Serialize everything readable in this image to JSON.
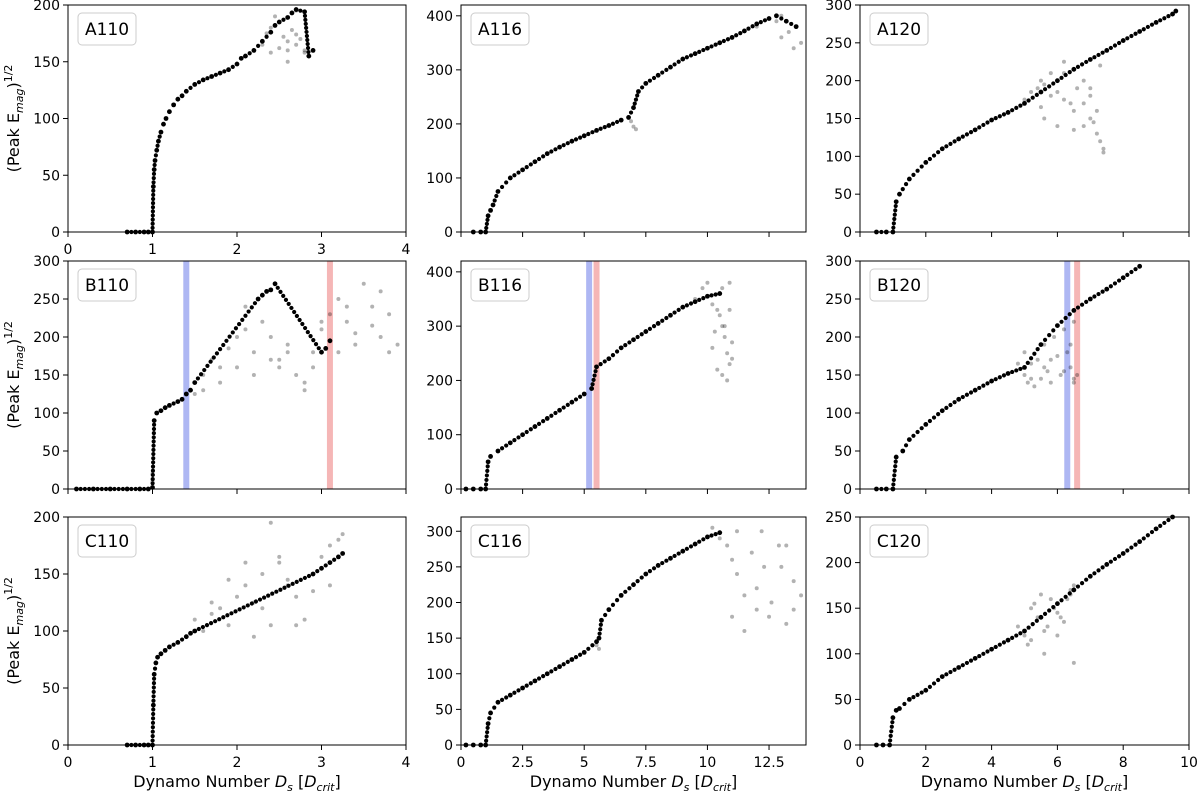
{
  "figure": {
    "xlabel_left": "Dynamo Number ",
    "xlabel_var": "D",
    "xlabel_var_sub": "s",
    "xlabel_bracket_open": " [",
    "xlabel_unit": "D",
    "xlabel_unit_sub": "crit",
    "xlabel_bracket_close": "]",
    "ylabel_prefix": "(Peak E",
    "ylabel_sub": "mag",
    "ylabel_suffix": ")",
    "ylabel_sup": "1/2",
    "point_color": "#000000",
    "blue_line_color": "#9aa5f0",
    "red_line_color": "#f2a4a4"
  },
  "chart_data": [
    {
      "id": "A110",
      "type": "scatter",
      "label": "A110",
      "xlim": [
        0,
        4
      ],
      "ylim": [
        0,
        200
      ],
      "xticks": [
        0,
        1,
        2,
        3,
        4
      ],
      "yticks": [
        0,
        50,
        100,
        150,
        200
      ],
      "markers": [],
      "x": [
        0.7,
        0.8,
        0.9,
        0.95,
        1.0,
        1.01,
        1.02,
        1.03,
        1.05,
        1.07,
        1.1,
        1.13,
        1.16,
        1.2,
        1.25,
        1.3,
        1.35,
        1.4,
        1.5,
        1.6,
        1.7,
        1.8,
        1.9,
        2.0,
        2.05,
        2.1,
        2.2,
        2.3,
        2.4,
        2.45,
        2.5,
        2.6,
        2.65,
        2.7,
        2.8,
        2.85,
        2.9
      ],
      "y": [
        0,
        0,
        0,
        0,
        0,
        40,
        55,
        63,
        72,
        80,
        88,
        95,
        100,
        106,
        112,
        117,
        120,
        124,
        130,
        134,
        137,
        140,
        143,
        148,
        153,
        155,
        160,
        168,
        176,
        182,
        185,
        189,
        193,
        196,
        194,
        155,
        160
      ],
      "scatter": {
        "x": [
          2.3,
          2.35,
          2.4,
          2.45,
          2.5,
          2.55,
          2.6,
          2.65,
          2.7,
          2.75,
          2.8,
          2.4,
          2.5,
          2.6,
          2.7,
          2.8,
          2.6,
          2.7
        ],
        "y": [
          165,
          175,
          180,
          190,
          185,
          172,
          168,
          178,
          195,
          170,
          160,
          158,
          162,
          160,
          174,
          158,
          150,
          165
        ]
      }
    },
    {
      "id": "A116",
      "type": "scatter",
      "label": "A116",
      "xlim": [
        0,
        14
      ],
      "ylim": [
        0,
        420
      ],
      "xticks": [],
      "yticks": [
        0,
        100,
        200,
        300,
        400
      ],
      "markers": [],
      "x": [
        0.5,
        0.8,
        1.0,
        1.1,
        1.2,
        1.3,
        1.5,
        2.0,
        2.5,
        3.0,
        3.5,
        4.0,
        4.5,
        5.0,
        5.5,
        6.0,
        6.5,
        6.8,
        7.0,
        7.2,
        7.5,
        8.0,
        8.5,
        9.0,
        9.5,
        10.0,
        10.5,
        11.0,
        11.5,
        12.0,
        12.5,
        12.8,
        13.2,
        13.6
      ],
      "y": [
        0,
        0,
        0,
        30,
        40,
        50,
        75,
        100,
        115,
        130,
        145,
        157,
        168,
        178,
        188,
        197,
        207,
        212,
        230,
        260,
        275,
        290,
        305,
        320,
        330,
        340,
        350,
        360,
        372,
        385,
        395,
        400,
        390,
        380
      ],
      "scatter": {
        "x": [
          6.9,
          7.0,
          7.1,
          12.0,
          12.5,
          12.8,
          13.0,
          13.3,
          13.6,
          13.8,
          13.0,
          13.5
        ],
        "y": [
          205,
          195,
          190,
          380,
          395,
          390,
          360,
          370,
          380,
          350,
          400,
          340
        ]
      }
    },
    {
      "id": "A120",
      "type": "scatter",
      "label": "A120",
      "xlim": [
        0,
        10
      ],
      "ylim": [
        0,
        300
      ],
      "xticks": [],
      "yticks": [
        0,
        50,
        100,
        150,
        200,
        250,
        300
      ],
      "markers": [],
      "x": [
        0.5,
        0.8,
        1.0,
        1.1,
        1.2,
        1.5,
        2.0,
        2.5,
        3.0,
        3.5,
        4.0,
        4.5,
        5.0,
        5.5,
        6.0,
        6.5,
        7.0,
        7.5,
        8.0,
        8.5,
        9.0,
        9.5,
        9.6
      ],
      "y": [
        0,
        0,
        0,
        40,
        50,
        70,
        92,
        110,
        123,
        135,
        148,
        158,
        170,
        185,
        200,
        215,
        228,
        240,
        253,
        265,
        277,
        288,
        292
      ],
      "scatter": {
        "x": [
          5.0,
          5.2,
          5.4,
          5.5,
          5.6,
          5.8,
          6.0,
          6.2,
          6.4,
          6.5,
          6.6,
          6.8,
          7.0,
          7.2,
          7.3,
          7.4,
          5.5,
          5.8,
          6.0,
          6.2,
          6.5,
          6.8,
          7.0,
          7.2,
          7.4,
          6.0,
          6.5,
          7.0,
          7.3,
          5.6,
          6.2,
          6.8,
          7.1
        ],
        "y": [
          175,
          185,
          190,
          165,
          150,
          180,
          200,
          210,
          170,
          160,
          190,
          140,
          150,
          130,
          120,
          110,
          200,
          210,
          185,
          175,
          215,
          200,
          180,
          160,
          105,
          140,
          135,
          190,
          220,
          195,
          225,
          170,
          145
        ]
      }
    },
    {
      "id": "B110",
      "type": "scatter",
      "label": "B110",
      "xlim": [
        0,
        4
      ],
      "ylim": [
        0,
        300
      ],
      "xticks": [],
      "yticks": [
        0,
        50,
        100,
        150,
        200,
        250,
        300
      ],
      "markers": [
        {
          "x": 1.4,
          "color": "blue"
        },
        {
          "x": 3.1,
          "color": "red"
        }
      ],
      "x": [
        0.1,
        0.3,
        0.5,
        0.7,
        0.85,
        0.95,
        1.0,
        1.02,
        1.05,
        1.1,
        1.15,
        1.2,
        1.3,
        1.35,
        1.4,
        1.45,
        1.5,
        2.25,
        2.3,
        2.35,
        2.4,
        2.45,
        3.0,
        3.05,
        3.1
      ],
      "y": [
        0,
        0,
        0,
        0,
        0,
        0,
        2,
        90,
        100,
        103,
        107,
        110,
        115,
        118,
        125,
        130,
        140,
        250,
        255,
        260,
        262,
        270,
        180,
        185,
        195
      ],
      "scatter": {
        "x": [
          1.5,
          1.6,
          1.7,
          1.8,
          1.9,
          2.0,
          2.1,
          2.2,
          2.3,
          2.4,
          2.5,
          2.6,
          2.7,
          2.8,
          2.9,
          3.0,
          3.1,
          3.2,
          3.3,
          3.4,
          3.5,
          3.6,
          3.7,
          3.8,
          3.9,
          1.6,
          1.8,
          2.0,
          2.2,
          2.4,
          2.6,
          2.8,
          3.0,
          3.2,
          3.4,
          3.6,
          3.8,
          2.1,
          2.5,
          2.9,
          3.3,
          3.7,
          1.0,
          1.0
        ],
        "y": [
          125,
          150,
          170,
          160,
          185,
          200,
          210,
          180,
          220,
          200,
          170,
          190,
          150,
          140,
          180,
          210,
          230,
          250,
          220,
          190,
          270,
          240,
          200,
          230,
          190,
          130,
          140,
          160,
          150,
          170,
          180,
          130,
          220,
          180,
          205,
          215,
          180,
          240,
          160,
          160,
          240,
          260,
          20,
          10
        ]
      }
    },
    {
      "id": "B116",
      "type": "scatter",
      "label": "B116",
      "xlim": [
        0,
        14
      ],
      "ylim": [
        0,
        420
      ],
      "xticks": [],
      "yticks": [
        0,
        100,
        200,
        300,
        400
      ],
      "markers": [
        {
          "x": 5.2,
          "color": "blue"
        },
        {
          "x": 5.5,
          "color": "red"
        }
      ],
      "x": [
        0.2,
        0.5,
        0.8,
        1.0,
        1.1,
        1.2,
        1.5,
        2.0,
        2.5,
        3.0,
        3.5,
        4.0,
        4.5,
        5.0,
        5.3,
        5.5,
        6.0,
        6.5,
        7.0,
        7.5,
        8.0,
        8.5,
        9.0,
        9.5,
        10.0,
        10.5
      ],
      "y": [
        0,
        0,
        0,
        0,
        50,
        60,
        70,
        85,
        100,
        115,
        130,
        145,
        160,
        175,
        185,
        225,
        240,
        260,
        275,
        290,
        305,
        320,
        335,
        345,
        355,
        360
      ],
      "scatter": {
        "x": [
          9.5,
          9.8,
          10.0,
          10.2,
          10.4,
          10.5,
          10.6,
          10.7,
          10.8,
          10.9,
          11.0,
          10.2,
          10.4,
          10.6,
          10.8,
          11.0,
          10.5,
          10.7,
          10.9,
          10.3,
          10.6,
          10.9
        ],
        "y": [
          350,
          370,
          380,
          340,
          330,
          360,
          300,
          280,
          250,
          230,
          270,
          260,
          220,
          210,
          200,
          240,
          320,
          300,
          330,
          290,
          370,
          380
        ]
      }
    },
    {
      "id": "B120",
      "type": "scatter",
      "label": "B120",
      "xlim": [
        0,
        10
      ],
      "ylim": [
        0,
        300
      ],
      "xticks": [],
      "yticks": [
        0,
        50,
        100,
        150,
        200,
        250,
        300
      ],
      "markers": [
        {
          "x": 6.3,
          "color": "blue"
        },
        {
          "x": 6.6,
          "color": "red"
        }
      ],
      "x": [
        0.5,
        0.8,
        1.0,
        1.1,
        1.3,
        1.5,
        2.0,
        2.5,
        3.0,
        3.5,
        4.0,
        4.5,
        5.0,
        5.5,
        6.0,
        6.5,
        7.0,
        7.5,
        8.0,
        8.5
      ],
      "y": [
        0,
        0,
        0,
        42,
        50,
        65,
        85,
        103,
        118,
        130,
        142,
        152,
        160,
        190,
        215,
        235,
        250,
        263,
        278,
        293
      ],
      "scatter": {
        "x": [
          4.8,
          5.0,
          5.2,
          5.4,
          5.6,
          5.8,
          6.0,
          6.2,
          6.4,
          6.5,
          6.6,
          5.0,
          5.3,
          5.6,
          5.9,
          6.2,
          6.5,
          5.2,
          5.5,
          5.8,
          6.1,
          6.4,
          5.1,
          5.7,
          6.3,
          6.5
        ],
        "y": [
          165,
          150,
          145,
          170,
          160,
          140,
          175,
          155,
          190,
          145,
          150,
          180,
          135,
          190,
          200,
          210,
          220,
          165,
          145,
          170,
          150,
          160,
          140,
          155,
          180,
          140
        ]
      }
    },
    {
      "id": "C110",
      "type": "scatter",
      "label": "C110",
      "xlim": [
        0,
        4
      ],
      "ylim": [
        0,
        200
      ],
      "xticks": [
        0,
        1,
        2,
        3,
        4
      ],
      "yticks": [
        0,
        50,
        100,
        150,
        200
      ],
      "markers": [],
      "x": [
        0.7,
        0.8,
        0.9,
        0.95,
        1.0,
        1.01,
        1.02,
        1.04,
        1.06,
        1.1,
        1.15,
        1.2,
        1.3,
        1.4,
        1.45,
        1.5,
        2.9,
        3.0,
        3.1,
        3.2,
        3.25
      ],
      "y": [
        0,
        0,
        0,
        0,
        0,
        35,
        62,
        72,
        77,
        80,
        83,
        86,
        90,
        95,
        98,
        100,
        150,
        155,
        160,
        165,
        168
      ],
      "scatter": {
        "x": [
          1.5,
          1.6,
          1.7,
          1.8,
          1.9,
          2.0,
          2.1,
          2.2,
          2.3,
          2.4,
          2.5,
          2.6,
          2.7,
          2.8,
          2.9,
          3.0,
          3.1,
          3.2,
          3.25,
          1.7,
          1.9,
          2.1,
          2.3,
          2.5,
          2.7,
          2.9,
          3.1,
          2.4,
          2.6,
          2.2
        ],
        "y": [
          110,
          100,
          115,
          120,
          105,
          130,
          140,
          125,
          150,
          195,
          160,
          145,
          130,
          110,
          135,
          165,
          175,
          180,
          185,
          125,
          145,
          160,
          120,
          165,
          105,
          150,
          140,
          105,
          140,
          95
        ]
      }
    },
    {
      "id": "C116",
      "type": "scatter",
      "label": "C116",
      "xlim": [
        0,
        14
      ],
      "ylim": [
        0,
        320
      ],
      "xticks": [
        0.0,
        2.5,
        5.0,
        7.5,
        10.0,
        12.5
      ],
      "yticks": [
        0,
        50,
        100,
        150,
        200,
        250,
        300
      ],
      "markers": [],
      "x": [
        0.2,
        0.5,
        0.8,
        1.0,
        1.1,
        1.2,
        1.5,
        2.0,
        2.5,
        3.0,
        3.5,
        4.0,
        4.5,
        5.0,
        5.5,
        5.6,
        5.7,
        6.0,
        6.5,
        7.0,
        7.5,
        8.0,
        8.5,
        9.0,
        9.5,
        10.0,
        10.5
      ],
      "y": [
        0,
        0,
        0,
        0,
        30,
        45,
        60,
        70,
        80,
        90,
        100,
        110,
        120,
        130,
        145,
        150,
        175,
        190,
        210,
        225,
        240,
        252,
        262,
        272,
        282,
        292,
        298
      ],
      "scatter": {
        "x": [
          10.2,
          10.5,
          10.8,
          11.0,
          11.2,
          11.5,
          11.8,
          12.0,
          12.3,
          12.6,
          12.9,
          13.2,
          13.5,
          13.8,
          11.0,
          11.5,
          12.0,
          12.5,
          13.0,
          13.5,
          11.2,
          12.2,
          13.2,
          5.5,
          5.6
        ],
        "y": [
          305,
          290,
          280,
          260,
          240,
          210,
          270,
          190,
          250,
          200,
          280,
          170,
          230,
          210,
          180,
          160,
          220,
          180,
          250,
          190,
          300,
          300,
          280,
          140,
          135
        ]
      }
    },
    {
      "id": "C120",
      "type": "scatter",
      "label": "C120",
      "xlim": [
        0,
        10
      ],
      "ylim": [
        0,
        250
      ],
      "xticks": [
        0,
        2,
        4,
        6,
        8,
        10
      ],
      "yticks": [
        0,
        50,
        100,
        150,
        200,
        250
      ],
      "markers": [],
      "x": [
        0.5,
        0.7,
        0.9,
        1.0,
        1.1,
        1.2,
        1.5,
        2.0,
        2.5,
        3.0,
        3.5,
        4.0,
        4.5,
        5.0,
        5.5,
        6.0,
        6.5,
        7.0,
        7.5,
        8.0,
        8.5,
        9.0,
        9.5
      ],
      "y": [
        0,
        0,
        0,
        30,
        38,
        40,
        50,
        60,
        75,
        85,
        95,
        105,
        115,
        125,
        140,
        155,
        170,
        185,
        198,
        210,
        223,
        237,
        250
      ],
      "scatter": {
        "x": [
          4.8,
          5.0,
          5.2,
          5.4,
          5.6,
          5.8,
          6.0,
          6.2,
          6.4,
          6.5,
          5.1,
          5.3,
          5.5,
          5.7,
          5.9,
          6.1,
          6.3,
          6.5,
          5.2,
          5.6,
          6.0,
          6.4
        ],
        "y": [
          130,
          120,
          150,
          140,
          125,
          160,
          145,
          135,
          170,
          90,
          110,
          155,
          165,
          130,
          150,
          140,
          160,
          175,
          115,
          100,
          120,
          165
        ]
      }
    }
  ]
}
